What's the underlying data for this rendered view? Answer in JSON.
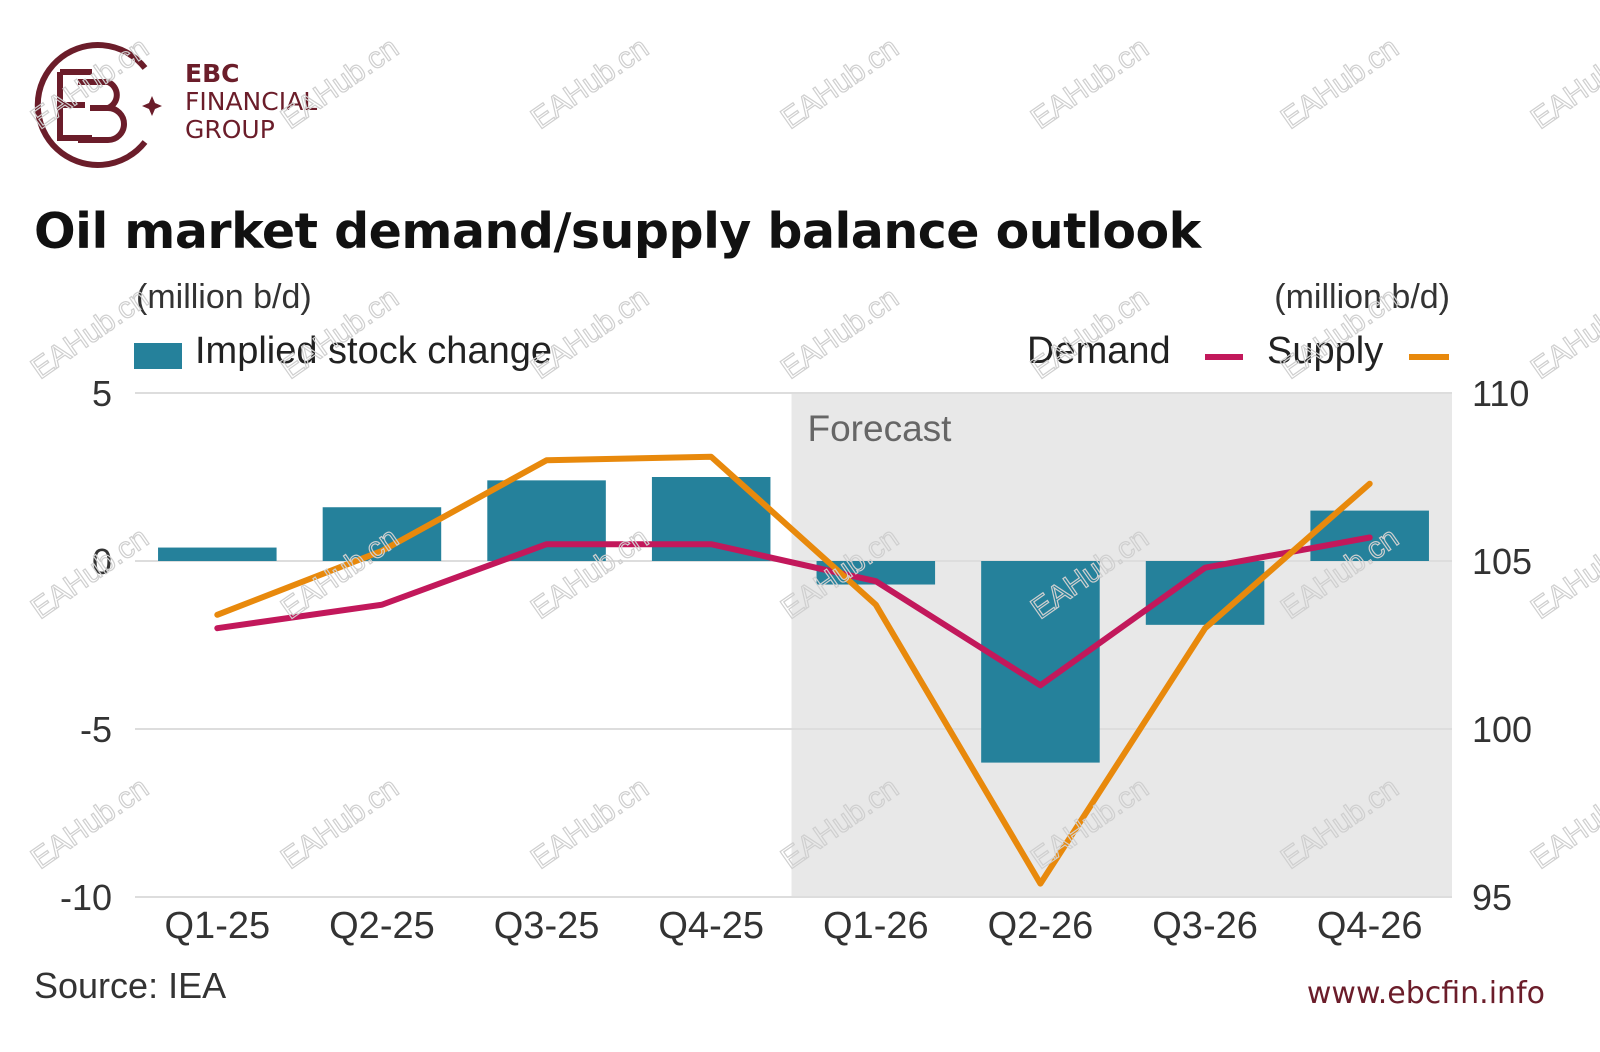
{
  "brand": {
    "line1": "EBC",
    "line2": "FINANCIAL",
    "line3": "GROUP",
    "color": "#6b1d2a"
  },
  "title": "Oil market demand/supply balance outlook",
  "units": {
    "left": "(million b/d)",
    "right": "(million b/d)"
  },
  "legend": {
    "bars": "Implied stock change",
    "demand": "Demand",
    "supply": "Supply"
  },
  "source": "Source: IEA",
  "website": "www.ebcfin.info",
  "watermark_text": "EAHub.cn",
  "chart_data": {
    "type": "bar+line",
    "categories": [
      "Q1-25",
      "Q2-25",
      "Q3-25",
      "Q4-25",
      "Q1-26",
      "Q2-26",
      "Q3-26",
      "Q4-26"
    ],
    "forecast_label": "Forecast",
    "forecast_start_index": 4,
    "left_axis": {
      "ylim": [
        -10,
        5
      ],
      "ticks": [
        5,
        0,
        -5,
        -10
      ]
    },
    "right_axis": {
      "ylim": [
        95,
        110
      ],
      "ticks": [
        110,
        105,
        100,
        95
      ]
    },
    "series": [
      {
        "name": "Implied stock change",
        "type": "bar",
        "axis": "left",
        "color": "#25819b",
        "values": [
          0.4,
          1.6,
          2.4,
          2.5,
          -0.7,
          -6.0,
          -1.9,
          1.5
        ]
      },
      {
        "name": "Demand",
        "type": "line",
        "axis": "right",
        "color": "#c2185b",
        "values": [
          103.0,
          103.7,
          105.5,
          105.5,
          104.4,
          101.3,
          104.8,
          105.7
        ]
      },
      {
        "name": "Supply",
        "type": "line",
        "axis": "right",
        "color": "#e8890c",
        "values": [
          103.4,
          105.3,
          108.0,
          108.1,
          103.7,
          95.4,
          103.0,
          107.3
        ]
      }
    ],
    "grid": true
  }
}
